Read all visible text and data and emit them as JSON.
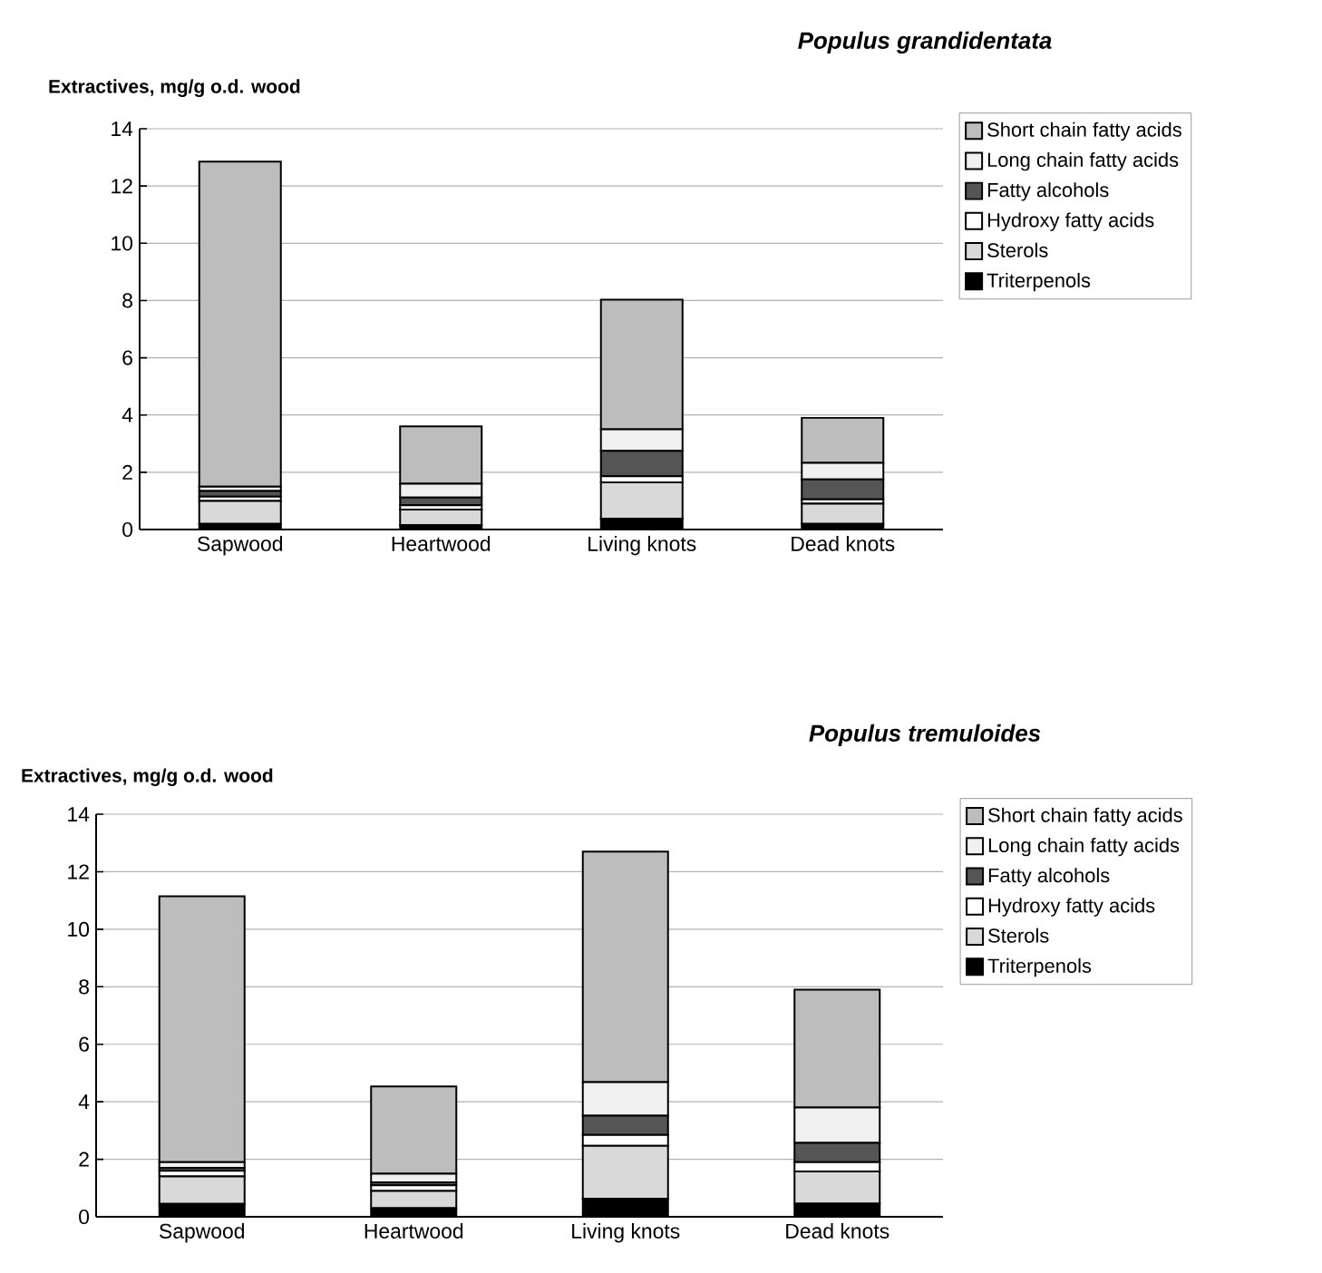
{
  "chart_data": [
    {
      "type": "bar",
      "stacked": true,
      "title": "Populus grandidentata",
      "ylabel": "Extractives, mg/g o.d. wood",
      "categories": [
        "Sapwood",
        "Heartwood",
        "Living knots",
        "Dead knots"
      ],
      "series": [
        {
          "name": "Triterpenols",
          "color": "#000000",
          "values": [
            0.2,
            0.15,
            0.38,
            0.2
          ]
        },
        {
          "name": "Sterols",
          "color": "#d9d9d9",
          "values": [
            0.8,
            0.55,
            1.27,
            0.7
          ]
        },
        {
          "name": "Hydroxy fatty acids",
          "color": "#ffffff",
          "values": [
            0.15,
            0.15,
            0.21,
            0.15
          ]
        },
        {
          "name": "Fatty alcohols",
          "color": "#555555",
          "values": [
            0.2,
            0.27,
            0.89,
            0.7
          ]
        },
        {
          "name": "Long chain fatty acids",
          "color": "#f0f0f0",
          "values": [
            0.15,
            0.48,
            0.75,
            0.58
          ]
        },
        {
          "name": "Short chain fatty acids",
          "color": "#bdbdbd",
          "values": [
            11.35,
            2.0,
            4.53,
            1.57
          ]
        }
      ],
      "ylim": [
        0,
        14
      ],
      "yticks": [
        0,
        2,
        4,
        6,
        8,
        10,
        12,
        14
      ],
      "grid": "y",
      "legend": "right"
    },
    {
      "type": "bar",
      "stacked": true,
      "title": "Populus tremuloides",
      "ylabel": "Extractives, mg/g o.d. wood",
      "categories": [
        "Sapwood",
        "Heartwood",
        "Living knots",
        "Dead knots"
      ],
      "series": [
        {
          "name": "Triterpenols",
          "color": "#000000",
          "values": [
            0.45,
            0.3,
            0.63,
            0.46
          ]
        },
        {
          "name": "Sterols",
          "color": "#d9d9d9",
          "values": [
            0.95,
            0.6,
            1.84,
            1.12
          ]
        },
        {
          "name": "Hydroxy fatty acids",
          "color": "#ffffff",
          "values": [
            0.2,
            0.2,
            0.38,
            0.32
          ]
        },
        {
          "name": "Fatty alcohols",
          "color": "#555555",
          "values": [
            0.1,
            0.1,
            0.67,
            0.67
          ]
        },
        {
          "name": "Long chain fatty acids",
          "color": "#f0f0f0",
          "values": [
            0.2,
            0.3,
            1.16,
            1.23
          ]
        },
        {
          "name": "Short chain fatty acids",
          "color": "#bdbdbd",
          "values": [
            9.25,
            3.03,
            8.02,
            4.1
          ]
        }
      ],
      "ylim": [
        0,
        14
      ],
      "yticks": [
        0,
        2,
        4,
        6,
        8,
        10,
        12,
        14
      ],
      "grid": "y",
      "legend": "right"
    }
  ]
}
